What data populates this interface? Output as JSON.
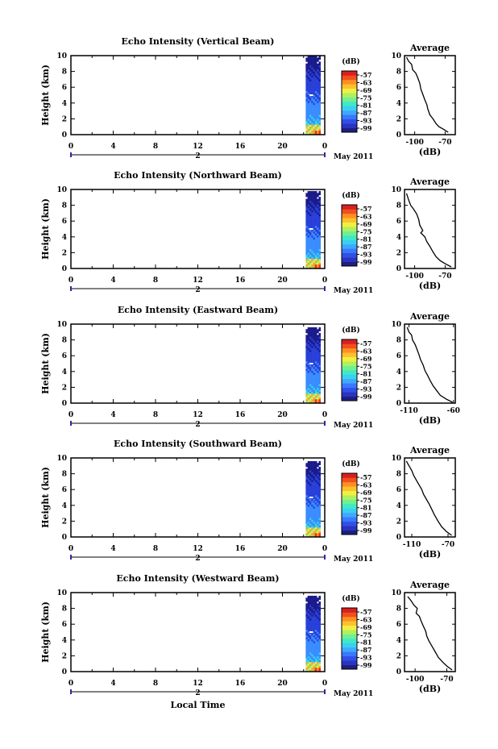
{
  "chart_data": [
    {
      "type": "heatmap",
      "title": "Echo Intensity (Vertical Beam)",
      "ylabel": "Height (km)",
      "x_ticks": [
        "0",
        "4",
        "8",
        "12",
        "16",
        "20",
        "0"
      ],
      "y_ticks": [
        "0",
        "2",
        "4",
        "6",
        "8",
        "10"
      ],
      "xlim": [
        0,
        24
      ],
      "ylim": [
        0,
        10
      ],
      "date_marker": "2",
      "date_label": "May 2011",
      "colorbar": {
        "unit": "(dB)",
        "ticks": [
          "-57",
          "-63",
          "-69",
          "-75",
          "-81",
          "-87",
          "-93",
          "-99"
        ]
      },
      "data_region": {
        "x_start": 22.2,
        "x_end": 23.6,
        "height_top": 10
      },
      "average_profile": {
        "title": "Average",
        "xlabel": "(dB)",
        "x_ticks": [
          "-100",
          "-70"
        ],
        "xlim": [
          -110,
          -60
        ],
        "y_ticks": [
          "0",
          "2",
          "4",
          "6",
          "8",
          "10"
        ],
        "points": [
          [
            -108,
            9.8
          ],
          [
            -106,
            9.3
          ],
          [
            -103,
            8.9
          ],
          [
            -102,
            8.2
          ],
          [
            -99,
            7.8
          ],
          [
            -97,
            7.2
          ],
          [
            -95,
            6.5
          ],
          [
            -94,
            5.8
          ],
          [
            -92,
            5.1
          ],
          [
            -90,
            4.4
          ],
          [
            -88,
            3.8
          ],
          [
            -87,
            3.2
          ],
          [
            -85,
            2.5
          ],
          [
            -82,
            2.0
          ],
          [
            -79,
            1.4
          ],
          [
            -76,
            1.0
          ],
          [
            -72,
            0.7
          ],
          [
            -67,
            0.3
          ]
        ]
      }
    },
    {
      "type": "heatmap",
      "title": "Echo Intensity (Northward Beam)",
      "ylabel": "Height (km)",
      "x_ticks": [
        "0",
        "4",
        "8",
        "12",
        "16",
        "20",
        "0"
      ],
      "y_ticks": [
        "0",
        "2",
        "4",
        "6",
        "8",
        "10"
      ],
      "xlim": [
        0,
        24
      ],
      "ylim": [
        0,
        10
      ],
      "date_marker": "2",
      "date_label": "May 2011",
      "colorbar": {
        "unit": "(dB)",
        "ticks": [
          "-57",
          "-63",
          "-69",
          "-75",
          "-81",
          "-87",
          "-93",
          "-99"
        ]
      },
      "data_region": {
        "x_start": 22.2,
        "x_end": 23.6,
        "height_top": 9.8
      },
      "average_profile": {
        "title": "Average",
        "xlabel": "(dB)",
        "x_ticks": [
          "-100",
          "-70"
        ],
        "xlim": [
          -110,
          -60
        ],
        "y_ticks": [
          "0",
          "2",
          "4",
          "6",
          "8",
          "10"
        ],
        "points": [
          [
            -108,
            9.5
          ],
          [
            -106,
            8.7
          ],
          [
            -104,
            8.0
          ],
          [
            -101,
            7.5
          ],
          [
            -98,
            6.9
          ],
          [
            -96,
            6.2
          ],
          [
            -95,
            5.5
          ],
          [
            -92,
            4.8
          ],
          [
            -94,
            4.5
          ],
          [
            -90,
            4.0
          ],
          [
            -88,
            3.4
          ],
          [
            -85,
            2.8
          ],
          [
            -82,
            2.1
          ],
          [
            -79,
            1.5
          ],
          [
            -75,
            1.0
          ],
          [
            -70,
            0.6
          ],
          [
            -64,
            0.2
          ]
        ]
      }
    },
    {
      "type": "heatmap",
      "title": "Echo Intensity (Eastward Beam)",
      "ylabel": "Height (km)",
      "x_ticks": [
        "0",
        "4",
        "8",
        "12",
        "16",
        "20",
        "0"
      ],
      "y_ticks": [
        "0",
        "2",
        "4",
        "6",
        "8",
        "10"
      ],
      "xlim": [
        0,
        24
      ],
      "ylim": [
        0,
        10
      ],
      "date_marker": "2",
      "date_label": "May 2011",
      "colorbar": {
        "unit": "(dB)",
        "ticks": [
          "-57",
          "-63",
          "-69",
          "-75",
          "-81",
          "-87",
          "-93",
          "-99"
        ]
      },
      "data_region": {
        "x_start": 22.2,
        "x_end": 23.6,
        "height_top": 9.6
      },
      "average_profile": {
        "title": "Average",
        "xlabel": "(dB)",
        "x_ticks": [
          "-110",
          "-60"
        ],
        "xlim": [
          -115,
          -58
        ],
        "y_ticks": [
          "0",
          "2",
          "4",
          "6",
          "8",
          "10"
        ],
        "points": [
          [
            -112,
            9.6
          ],
          [
            -110,
            9.0
          ],
          [
            -107,
            8.6
          ],
          [
            -106,
            8.0
          ],
          [
            -103,
            7.4
          ],
          [
            -101,
            6.8
          ],
          [
            -99,
            6.2
          ],
          [
            -97,
            5.5
          ],
          [
            -94,
            4.8
          ],
          [
            -92,
            4.1
          ],
          [
            -89,
            3.5
          ],
          [
            -86,
            2.8
          ],
          [
            -83,
            2.2
          ],
          [
            -79,
            1.6
          ],
          [
            -75,
            1.0
          ],
          [
            -68,
            0.5
          ],
          [
            -61,
            0.1
          ]
        ]
      }
    },
    {
      "type": "heatmap",
      "title": "Echo Intensity (Southward Beam)",
      "ylabel": "Height (km)",
      "x_ticks": [
        "0",
        "4",
        "8",
        "12",
        "16",
        "20",
        "0"
      ],
      "y_ticks": [
        "0",
        "2",
        "4",
        "6",
        "8",
        "10"
      ],
      "xlim": [
        0,
        24
      ],
      "ylim": [
        0,
        10
      ],
      "date_marker": "2",
      "date_label": "May 2011",
      "colorbar": {
        "unit": "(dB)",
        "ticks": [
          "-57",
          "-63",
          "-69",
          "-75",
          "-81",
          "-87",
          "-93",
          "-99"
        ]
      },
      "data_region": {
        "x_start": 22.2,
        "x_end": 23.6,
        "height_top": 9.6
      },
      "average_profile": {
        "title": "Average",
        "xlabel": "(dB)",
        "x_ticks": [
          "-110",
          "-70"
        ],
        "xlim": [
          -118,
          -62
        ],
        "y_ticks": [
          "0",
          "2",
          "4",
          "6",
          "8",
          "10"
        ],
        "points": [
          [
            -116,
            9.6
          ],
          [
            -113,
            9.0
          ],
          [
            -110,
            8.4
          ],
          [
            -108,
            7.8
          ],
          [
            -105,
            7.2
          ],
          [
            -102,
            6.6
          ],
          [
            -99,
            6.0
          ],
          [
            -97,
            5.4
          ],
          [
            -94,
            4.8
          ],
          [
            -91,
            4.2
          ],
          [
            -88,
            3.5
          ],
          [
            -85,
            2.8
          ],
          [
            -81,
            2.0
          ],
          [
            -77,
            1.3
          ],
          [
            -72,
            0.7
          ],
          [
            -66,
            0.2
          ]
        ]
      }
    },
    {
      "type": "heatmap",
      "title": "Echo Intensity (Westward Beam)",
      "ylabel": "Height (km)",
      "x_ticks": [
        "0",
        "4",
        "8",
        "12",
        "16",
        "20",
        "0"
      ],
      "y_ticks": [
        "0",
        "2",
        "4",
        "6",
        "8",
        "10"
      ],
      "xlim": [
        0,
        24
      ],
      "ylim": [
        0,
        10
      ],
      "date_marker": "2",
      "date_label": "May 2011",
      "xlabel": "Local Time",
      "colorbar": {
        "unit": "(dB)",
        "ticks": [
          "-57",
          "-63",
          "-69",
          "-75",
          "-81",
          "-87",
          "-93",
          "-99"
        ]
      },
      "data_region": {
        "x_start": 22.2,
        "x_end": 23.6,
        "height_top": 9.6
      },
      "average_profile": {
        "title": "Average",
        "xlabel": "(dB)",
        "x_ticks": [
          "-100",
          "-70"
        ],
        "xlim": [
          -110,
          -62
        ],
        "y_ticks": [
          "0",
          "2",
          "4",
          "6",
          "8",
          "10"
        ],
        "points": [
          [
            -107,
            9.5
          ],
          [
            -104,
            9.0
          ],
          [
            -101,
            8.4
          ],
          [
            -98,
            8.0
          ],
          [
            -99,
            7.4
          ],
          [
            -96,
            7.0
          ],
          [
            -94,
            6.3
          ],
          [
            -92,
            5.7
          ],
          [
            -90,
            5.1
          ],
          [
            -89,
            4.5
          ],
          [
            -87,
            3.9
          ],
          [
            -84,
            3.2
          ],
          [
            -81,
            2.5
          ],
          [
            -78,
            1.8
          ],
          [
            -74,
            1.2
          ],
          [
            -70,
            0.7
          ],
          [
            -65,
            0.2
          ]
        ]
      }
    }
  ]
}
